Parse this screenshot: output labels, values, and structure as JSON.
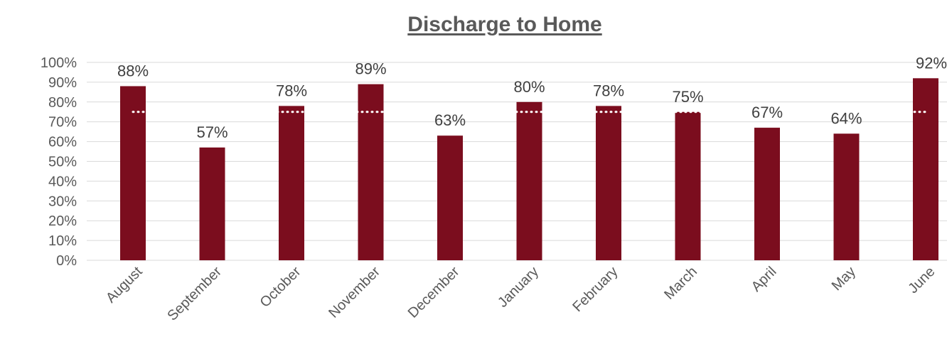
{
  "chart_data": {
    "type": "bar",
    "title": "Discharge to Home",
    "xlabel": "",
    "ylabel": "",
    "categories": [
      "August",
      "September",
      "October",
      "November",
      "December",
      "January",
      "February",
      "March",
      "April",
      "May",
      "June"
    ],
    "values": [
      88,
      57,
      78,
      89,
      63,
      80,
      78,
      75,
      67,
      64,
      92
    ],
    "data_labels": [
      "88%",
      "57%",
      "78%",
      "89%",
      "63%",
      "80%",
      "78%",
      "75%",
      "67%",
      "64%",
      "92%"
    ],
    "y_ticks": [
      "0%",
      "10%",
      "20%",
      "30%",
      "40%",
      "50%",
      "60%",
      "70%",
      "80%",
      "90%",
      "100%"
    ],
    "ylim": [
      0,
      100
    ],
    "y_format": "percent",
    "grid": true,
    "legend": "none",
    "reference_line": {
      "value": 75,
      "style": "dotted"
    },
    "colors": {
      "bar": "#7B0D1E",
      "gridline": "#D9D9D9",
      "reference": "#FFFFFF",
      "text": "#595959",
      "title": "#595959"
    }
  }
}
